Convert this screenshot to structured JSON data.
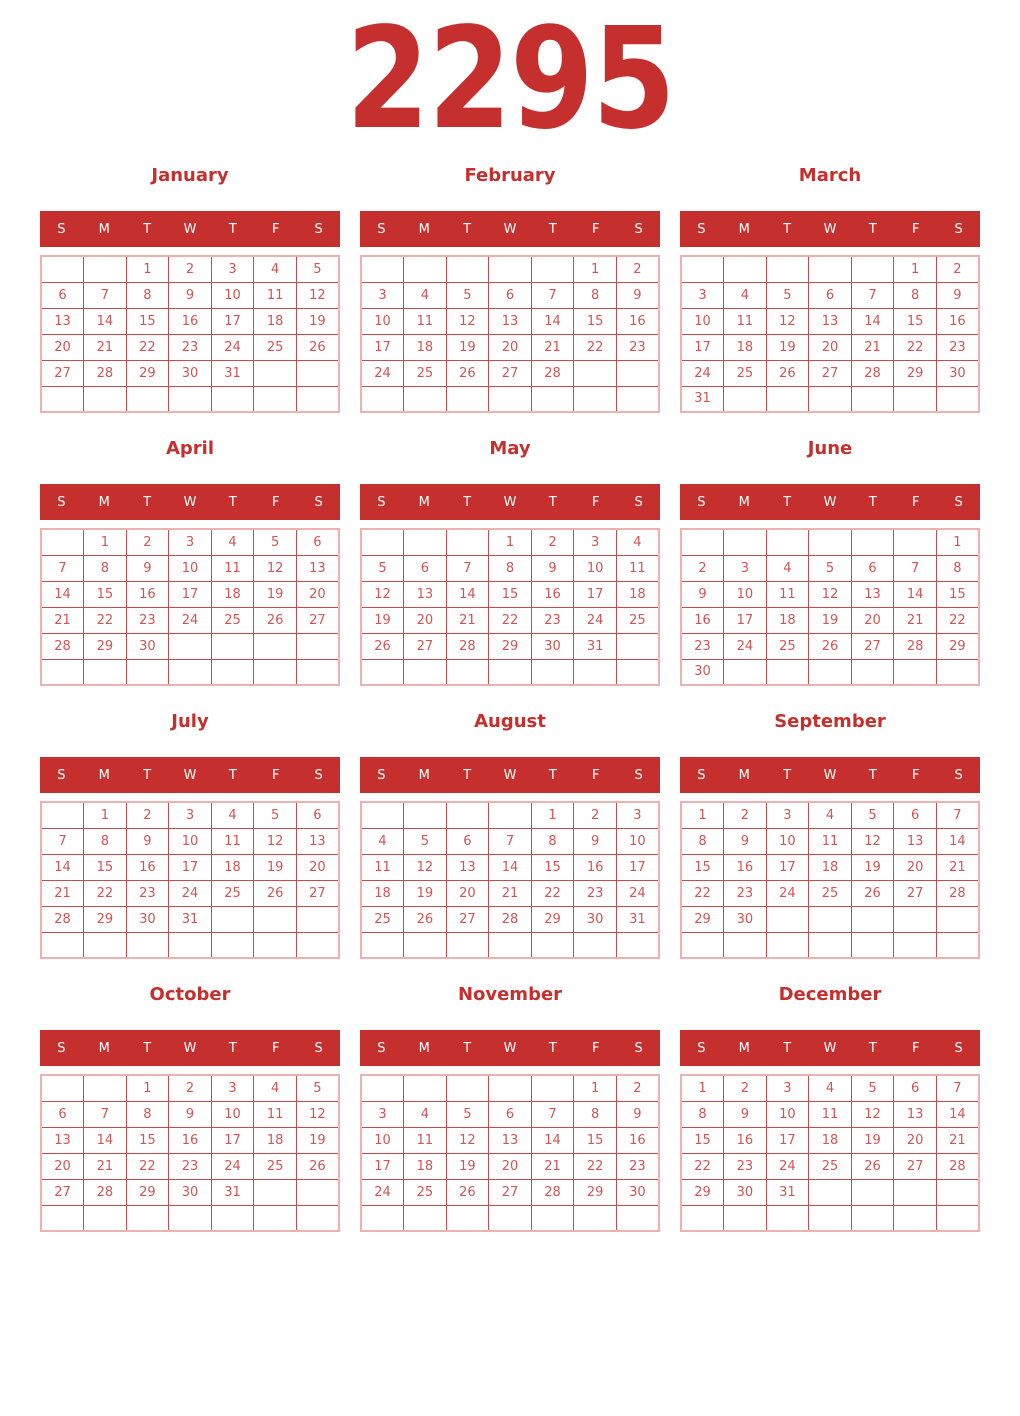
{
  "year": "2295",
  "colors": {
    "primary": "#c5302e",
    "date_text": "#d25456",
    "grid_line": "#c94b4b",
    "grid_outer_border": "#efb0b0",
    "weekday_text": "#ffffff",
    "background": "#ffffff"
  },
  "weekday_headers": [
    "S",
    "M",
    "T",
    "W",
    "T",
    "F",
    "S"
  ],
  "months": [
    {
      "name": "January",
      "weeks": [
        [
          "",
          "",
          "1",
          "2",
          "3",
          "4",
          "5"
        ],
        [
          "6",
          "7",
          "8",
          "9",
          "10",
          "11",
          "12"
        ],
        [
          "13",
          "14",
          "15",
          "16",
          "17",
          "18",
          "19"
        ],
        [
          "20",
          "21",
          "22",
          "23",
          "24",
          "25",
          "26"
        ],
        [
          "27",
          "28",
          "29",
          "30",
          "31",
          "",
          ""
        ],
        [
          "",
          "",
          "",
          "",
          "",
          "",
          ""
        ]
      ]
    },
    {
      "name": "February",
      "weeks": [
        [
          "",
          "",
          "",
          "",
          "",
          "1",
          "2"
        ],
        [
          "3",
          "4",
          "5",
          "6",
          "7",
          "8",
          "9"
        ],
        [
          "10",
          "11",
          "12",
          "13",
          "14",
          "15",
          "16"
        ],
        [
          "17",
          "18",
          "19",
          "20",
          "21",
          "22",
          "23"
        ],
        [
          "24",
          "25",
          "26",
          "27",
          "28",
          "",
          ""
        ],
        [
          "",
          "",
          "",
          "",
          "",
          "",
          ""
        ]
      ]
    },
    {
      "name": "March",
      "weeks": [
        [
          "",
          "",
          "",
          "",
          "",
          "1",
          "2"
        ],
        [
          "3",
          "4",
          "5",
          "6",
          "7",
          "8",
          "9"
        ],
        [
          "10",
          "11",
          "12",
          "13",
          "14",
          "15",
          "16"
        ],
        [
          "17",
          "18",
          "19",
          "20",
          "21",
          "22",
          "23"
        ],
        [
          "24",
          "25",
          "26",
          "27",
          "28",
          "29",
          "30"
        ],
        [
          "31",
          "",
          "",
          "",
          "",
          "",
          ""
        ]
      ]
    },
    {
      "name": "April",
      "weeks": [
        [
          "",
          "1",
          "2",
          "3",
          "4",
          "5",
          "6"
        ],
        [
          "7",
          "8",
          "9",
          "10",
          "11",
          "12",
          "13"
        ],
        [
          "14",
          "15",
          "16",
          "17",
          "18",
          "19",
          "20"
        ],
        [
          "21",
          "22",
          "23",
          "24",
          "25",
          "26",
          "27"
        ],
        [
          "28",
          "29",
          "30",
          "",
          "",
          "",
          ""
        ],
        [
          "",
          "",
          "",
          "",
          "",
          "",
          ""
        ]
      ]
    },
    {
      "name": "May",
      "weeks": [
        [
          "",
          "",
          "",
          "1",
          "2",
          "3",
          "4"
        ],
        [
          "5",
          "6",
          "7",
          "8",
          "9",
          "10",
          "11"
        ],
        [
          "12",
          "13",
          "14",
          "15",
          "16",
          "17",
          "18"
        ],
        [
          "19",
          "20",
          "21",
          "22",
          "23",
          "24",
          "25"
        ],
        [
          "26",
          "27",
          "28",
          "29",
          "30",
          "31",
          ""
        ],
        [
          "",
          "",
          "",
          "",
          "",
          "",
          ""
        ]
      ]
    },
    {
      "name": "June",
      "weeks": [
        [
          "",
          "",
          "",
          "",
          "",
          "",
          "1"
        ],
        [
          "2",
          "3",
          "4",
          "5",
          "6",
          "7",
          "8"
        ],
        [
          "9",
          "10",
          "11",
          "12",
          "13",
          "14",
          "15"
        ],
        [
          "16",
          "17",
          "18",
          "19",
          "20",
          "21",
          "22"
        ],
        [
          "23",
          "24",
          "25",
          "26",
          "27",
          "28",
          "29"
        ],
        [
          "30",
          "",
          "",
          "",
          "",
          "",
          ""
        ]
      ]
    },
    {
      "name": "July",
      "weeks": [
        [
          "",
          "1",
          "2",
          "3",
          "4",
          "5",
          "6"
        ],
        [
          "7",
          "8",
          "9",
          "10",
          "11",
          "12",
          "13"
        ],
        [
          "14",
          "15",
          "16",
          "17",
          "18",
          "19",
          "20"
        ],
        [
          "21",
          "22",
          "23",
          "24",
          "25",
          "26",
          "27"
        ],
        [
          "28",
          "29",
          "30",
          "31",
          "",
          "",
          ""
        ],
        [
          "",
          "",
          "",
          "",
          "",
          "",
          ""
        ]
      ]
    },
    {
      "name": "August",
      "weeks": [
        [
          "",
          "",
          "",
          "",
          "1",
          "2",
          "3"
        ],
        [
          "4",
          "5",
          "6",
          "7",
          "8",
          "9",
          "10"
        ],
        [
          "11",
          "12",
          "13",
          "14",
          "15",
          "16",
          "17"
        ],
        [
          "18",
          "19",
          "20",
          "21",
          "22",
          "23",
          "24"
        ],
        [
          "25",
          "26",
          "27",
          "28",
          "29",
          "30",
          "31"
        ],
        [
          "",
          "",
          "",
          "",
          "",
          "",
          ""
        ]
      ]
    },
    {
      "name": "September",
      "weeks": [
        [
          "1",
          "2",
          "3",
          "4",
          "5",
          "6",
          "7"
        ],
        [
          "8",
          "9",
          "10",
          "11",
          "12",
          "13",
          "14"
        ],
        [
          "15",
          "16",
          "17",
          "18",
          "19",
          "20",
          "21"
        ],
        [
          "22",
          "23",
          "24",
          "25",
          "26",
          "27",
          "28"
        ],
        [
          "29",
          "30",
          "",
          "",
          "",
          "",
          ""
        ],
        [
          "",
          "",
          "",
          "",
          "",
          "",
          ""
        ]
      ]
    },
    {
      "name": "October",
      "weeks": [
        [
          "",
          "",
          "1",
          "2",
          "3",
          "4",
          "5"
        ],
        [
          "6",
          "7",
          "8",
          "9",
          "10",
          "11",
          "12"
        ],
        [
          "13",
          "14",
          "15",
          "16",
          "17",
          "18",
          "19"
        ],
        [
          "20",
          "21",
          "22",
          "23",
          "24",
          "25",
          "26"
        ],
        [
          "27",
          "28",
          "29",
          "30",
          "31",
          "",
          ""
        ],
        [
          "",
          "",
          "",
          "",
          "",
          "",
          ""
        ]
      ]
    },
    {
      "name": "November",
      "weeks": [
        [
          "",
          "",
          "",
          "",
          "",
          "1",
          "2"
        ],
        [
          "3",
          "4",
          "5",
          "6",
          "7",
          "8",
          "9"
        ],
        [
          "10",
          "11",
          "12",
          "13",
          "14",
          "15",
          "16"
        ],
        [
          "17",
          "18",
          "19",
          "20",
          "21",
          "22",
          "23"
        ],
        [
          "24",
          "25",
          "26",
          "27",
          "28",
          "29",
          "30"
        ],
        [
          "",
          "",
          "",
          "",
          "",
          "",
          ""
        ]
      ]
    },
    {
      "name": "December",
      "weeks": [
        [
          "1",
          "2",
          "3",
          "4",
          "5",
          "6",
          "7"
        ],
        [
          "8",
          "9",
          "10",
          "11",
          "12",
          "13",
          "14"
        ],
        [
          "15",
          "16",
          "17",
          "18",
          "19",
          "20",
          "21"
        ],
        [
          "22",
          "23",
          "24",
          "25",
          "26",
          "27",
          "28"
        ],
        [
          "29",
          "30",
          "31",
          "",
          "",
          "",
          ""
        ],
        [
          "",
          "",
          "",
          "",
          "",
          "",
          ""
        ]
      ]
    }
  ]
}
